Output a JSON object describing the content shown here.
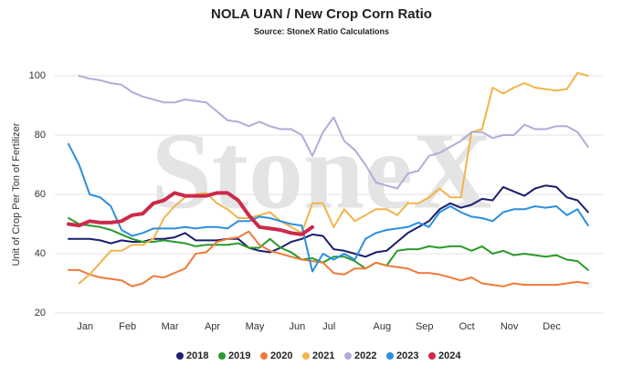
{
  "chart_data": {
    "type": "line",
    "title": "NOLA UAN / New Crop Corn Ratio",
    "subtitle": "Source: StoneX Ratio Calculations",
    "watermark": "StoneX",
    "y_label": "Unit of Crop Per Ton of Fertilizer",
    "categories": [
      null,
      null,
      "Jan",
      null,
      null,
      null,
      "Feb",
      null,
      null,
      null,
      "Mar",
      null,
      null,
      null,
      "Apr",
      null,
      null,
      null,
      "May",
      null,
      null,
      null,
      "Jun",
      null,
      null,
      "Jul",
      null,
      null,
      null,
      null,
      "Aug",
      null,
      null,
      null,
      "Sep",
      null,
      null,
      null,
      "Oct",
      null,
      null,
      null,
      "Nov",
      null,
      null,
      null,
      "Dec",
      null,
      null,
      null
    ],
    "ylim": [
      20,
      100
    ],
    "yticks": [
      20,
      40,
      60,
      80,
      100
    ],
    "grid": true,
    "legend": "bottom",
    "series": [
      {
        "name": "2018",
        "color": "#1b1f6e",
        "values": [
          45,
          45,
          45,
          44.5,
          43.5,
          44.5,
          44,
          44,
          45,
          45,
          45.5,
          47,
          44.5,
          44.5,
          44.5,
          45,
          45,
          42,
          41,
          40.5,
          42,
          44,
          45,
          46.5,
          46,
          41.5,
          41,
          40,
          39,
          40.5,
          41,
          44,
          47,
          49,
          51,
          55,
          57,
          55.5,
          56.5,
          58.5,
          58,
          62.5,
          61,
          59.5,
          62,
          63,
          62.5,
          59,
          58,
          54
        ]
      },
      {
        "name": "2019",
        "color": "#2a9a2a",
        "values": [
          52,
          50,
          49.5,
          49,
          48,
          46.5,
          45,
          44,
          44,
          44.5,
          44,
          43.5,
          42.5,
          43,
          43,
          43,
          43.5,
          42,
          42,
          45,
          42,
          40.5,
          38,
          38.5,
          37,
          39,
          39,
          37.5,
          35,
          37,
          36,
          41,
          41.5,
          41.5,
          42.5,
          42,
          42.5,
          42.5,
          41,
          42.5,
          40,
          41,
          39.5,
          40,
          39.5,
          39,
          39.5,
          38,
          37.5,
          34.5
        ]
      },
      {
        "name": "2020",
        "color": "#f07a3c",
        "values": [
          34.5,
          34.5,
          33,
          32,
          31.5,
          31,
          29,
          30,
          32.5,
          32,
          33.5,
          35,
          40,
          40.5,
          44,
          45,
          45.5,
          47.5,
          43,
          41,
          40,
          39,
          38,
          37.5,
          37,
          33.5,
          33,
          35,
          35,
          37,
          36,
          35.5,
          35,
          33.5,
          33.5,
          33,
          32,
          31,
          32,
          30,
          29.5,
          29,
          30,
          29.5,
          29.5,
          29.5,
          29.5,
          30,
          30.5,
          30
        ]
      },
      {
        "name": "2021",
        "color": "#f2b44c",
        "values": [
          null,
          30,
          33,
          37,
          41,
          41,
          43,
          43,
          45,
          52,
          56,
          59,
          60,
          60.5,
          57,
          55,
          52,
          52,
          53,
          54,
          51,
          49,
          47,
          57,
          57,
          49,
          55,
          51,
          53,
          55,
          55,
          53,
          57,
          57,
          59,
          62,
          59,
          59,
          81,
          82,
          96,
          94,
          96,
          97.5,
          96,
          95.5,
          95,
          95.5,
          101,
          100
        ]
      },
      {
        "name": "2022",
        "color": "#aeaed8",
        "values": [
          null,
          100,
          99,
          98.5,
          97.5,
          97,
          94.5,
          93,
          92,
          91,
          91,
          92,
          91.5,
          91,
          88,
          85,
          84.5,
          83,
          84.5,
          83,
          82,
          82,
          80,
          73,
          81,
          86,
          78,
          75,
          70,
          64,
          63,
          62,
          67,
          68,
          73,
          74,
          76,
          78,
          81,
          81,
          79,
          80,
          80,
          83.5,
          82,
          82,
          83,
          83,
          81,
          76
        ]
      },
      {
        "name": "2023",
        "color": "#2b8fe0",
        "values": [
          77,
          70,
          60,
          59,
          56,
          48,
          46,
          47,
          48.5,
          48.5,
          48.5,
          49,
          48.5,
          49,
          49,
          48.5,
          51,
          51,
          52.5,
          52,
          51,
          50,
          49.5,
          34,
          40,
          38,
          40,
          38,
          45,
          47,
          48,
          48.5,
          49,
          50.5,
          49,
          54,
          56,
          54,
          52.5,
          52,
          51,
          54,
          55,
          55,
          56,
          55.5,
          56,
          53,
          55,
          49.5
        ]
      },
      {
        "name": "2024",
        "color": "#cc2a4a",
        "values": [
          50,
          49.5,
          51,
          50.5,
          50.5,
          51,
          53,
          53.5,
          57,
          58,
          60.5,
          59.5,
          59.5,
          59.5,
          60.5,
          60.5,
          58,
          53,
          49,
          48.5,
          48,
          47,
          46.5,
          49,
          null,
          null,
          null,
          null,
          null,
          null,
          null,
          null,
          null,
          null,
          null,
          null,
          null,
          null,
          null,
          null,
          null,
          null,
          null,
          null,
          null,
          null,
          null,
          null,
          null,
          null
        ]
      }
    ]
  }
}
